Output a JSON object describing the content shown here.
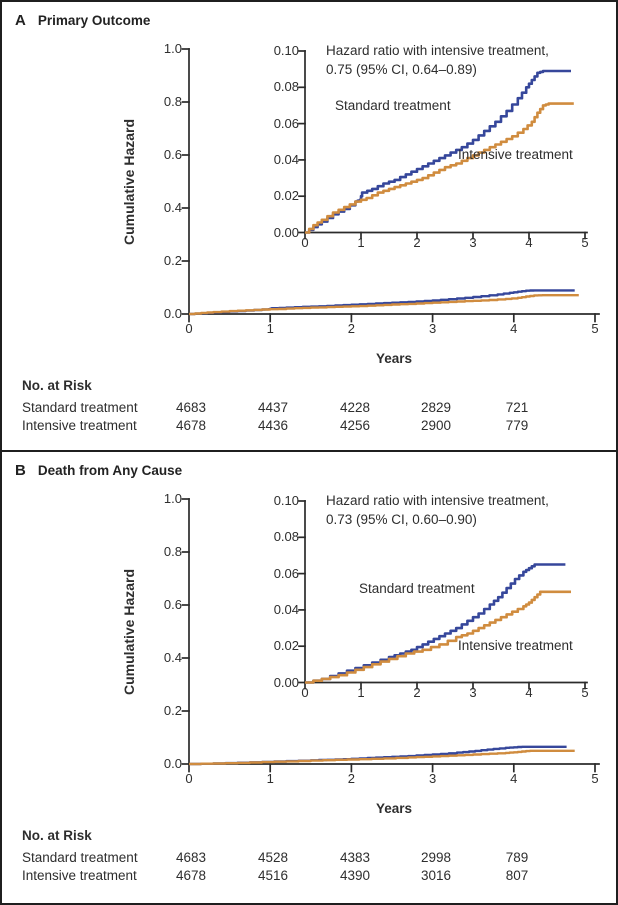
{
  "colors": {
    "standard_line": "#36479B",
    "intensive_line": "#D08C3F",
    "axis": "#2b2b2b",
    "text": "#2e2e2e",
    "border": "#1f1f1f"
  },
  "panels": [
    {
      "label": "A",
      "title": "Primary Outcome",
      "no_at_risk": {
        "heading": "No. at Risk",
        "rows": [
          {
            "label": "Standard treatment",
            "values": [
              "4683",
              "4437",
              "4228",
              "2829",
              "721"
            ]
          },
          {
            "label": "Intensive treatment",
            "values": [
              "4678",
              "4436",
              "4256",
              "2900",
              "779"
            ]
          }
        ]
      }
    },
    {
      "label": "B",
      "title": "Death from Any Cause",
      "no_at_risk": {
        "heading": "No. at Risk",
        "rows": [
          {
            "label": "Standard treatment",
            "values": [
              "4683",
              "4528",
              "4383",
              "2998",
              "789"
            ]
          },
          {
            "label": "Intensive treatment",
            "values": [
              "4678",
              "4516",
              "4390",
              "3016",
              "807"
            ]
          }
        ]
      }
    }
  ],
  "chart_data": [
    {
      "type": "line",
      "panel": "A",
      "title": "Primary Outcome",
      "xlabel": "Years",
      "ylabel": "Cumulative Hazard",
      "annotation": [
        "Hazard ratio with intensive treatment,",
        "0.75 (95% CI, 0.64–0.89)"
      ],
      "main_axis": {
        "xlim": [
          0,
          5
        ],
        "ylim": [
          0,
          1.0
        ],
        "xtick_labels": [
          "0",
          "1",
          "2",
          "3",
          "4",
          "5"
        ],
        "ytick_labels": [
          "0.0",
          "0.2",
          "0.4",
          "0.6",
          "0.8",
          "1.0"
        ],
        "grid": false
      },
      "inset_axis": {
        "xlim": [
          0,
          5
        ],
        "ylim": [
          0,
          0.1
        ],
        "xtick_labels": [
          "0",
          "1",
          "2",
          "3",
          "4",
          "5"
        ],
        "ytick_labels": [
          "0.00",
          "0.02",
          "0.04",
          "0.06",
          "0.08",
          "0.10"
        ],
        "grid": false
      },
      "series": [
        {
          "name": "Standard treatment",
          "color_key": "standard_line",
          "points": [
            [
              0,
              0
            ],
            [
              0.15,
              0.003
            ],
            [
              0.3,
              0.006
            ],
            [
              0.5,
              0.01
            ],
            [
              0.7,
              0.013
            ],
            [
              0.9,
              0.017
            ],
            [
              0.98,
              0.018
            ],
            [
              1.02,
              0.022
            ],
            [
              1.2,
              0.024
            ],
            [
              1.4,
              0.027
            ],
            [
              1.6,
              0.029
            ],
            [
              1.8,
              0.032
            ],
            [
              2.0,
              0.035
            ],
            [
              2.2,
              0.038
            ],
            [
              2.4,
              0.041
            ],
            [
              2.6,
              0.044
            ],
            [
              2.8,
              0.047
            ],
            [
              3.0,
              0.051
            ],
            [
              3.2,
              0.056
            ],
            [
              3.4,
              0.061
            ],
            [
              3.6,
              0.067
            ],
            [
              3.8,
              0.074
            ],
            [
              3.95,
              0.08
            ],
            [
              4.05,
              0.084
            ],
            [
              4.15,
              0.088
            ],
            [
              4.25,
              0.089
            ],
            [
              4.75,
              0.089
            ]
          ]
        },
        {
          "name": "Intensive treatment",
          "color_key": "intensive_line",
          "points": [
            [
              0,
              0
            ],
            [
              0.15,
              0.004
            ],
            [
              0.3,
              0.007
            ],
            [
              0.5,
              0.011
            ],
            [
              0.7,
              0.014
            ],
            [
              0.9,
              0.017
            ],
            [
              1.1,
              0.019
            ],
            [
              1.3,
              0.022
            ],
            [
              1.5,
              0.024
            ],
            [
              1.7,
              0.026
            ],
            [
              1.9,
              0.028
            ],
            [
              2.1,
              0.03
            ],
            [
              2.3,
              0.033
            ],
            [
              2.5,
              0.036
            ],
            [
              2.7,
              0.038
            ],
            [
              2.9,
              0.041
            ],
            [
              3.1,
              0.044
            ],
            [
              3.3,
              0.047
            ],
            [
              3.5,
              0.05
            ],
            [
              3.7,
              0.053
            ],
            [
              3.9,
              0.057
            ],
            [
              4.05,
              0.061
            ],
            [
              4.15,
              0.066
            ],
            [
              4.25,
              0.07
            ],
            [
              4.35,
              0.071
            ],
            [
              4.8,
              0.071
            ]
          ]
        }
      ]
    },
    {
      "type": "line",
      "panel": "B",
      "title": "Death from Any Cause",
      "xlabel": "Years",
      "ylabel": "Cumulative Hazard",
      "annotation": [
        "Hazard ratio with intensive treatment,",
        "0.73 (95% CI, 0.60–0.90)"
      ],
      "main_axis": {
        "xlim": [
          0,
          5
        ],
        "ylim": [
          0,
          1.0
        ],
        "xtick_labels": [
          "0",
          "1",
          "2",
          "3",
          "4",
          "5"
        ],
        "ytick_labels": [
          "0.0",
          "0.2",
          "0.4",
          "0.6",
          "0.8",
          "1.0"
        ],
        "grid": false
      },
      "inset_axis": {
        "xlim": [
          0,
          5
        ],
        "ylim": [
          0,
          0.1
        ],
        "xtick_labels": [
          "0",
          "1",
          "2",
          "3",
          "4",
          "5"
        ],
        "ytick_labels": [
          "0.00",
          "0.02",
          "0.04",
          "0.06",
          "0.08",
          "0.10"
        ],
        "grid": false
      },
      "series": [
        {
          "name": "Standard treatment",
          "color_key": "standard_line",
          "points": [
            [
              0,
              0
            ],
            [
              0.3,
              0.002
            ],
            [
              0.6,
              0.005
            ],
            [
              0.9,
              0.008
            ],
            [
              1.2,
              0.011
            ],
            [
              1.5,
              0.014
            ],
            [
              1.7,
              0.016
            ],
            [
              1.9,
              0.018
            ],
            [
              2.1,
              0.021
            ],
            [
              2.3,
              0.024
            ],
            [
              2.5,
              0.027
            ],
            [
              2.7,
              0.03
            ],
            [
              2.9,
              0.034
            ],
            [
              3.1,
              0.038
            ],
            [
              3.3,
              0.043
            ],
            [
              3.45,
              0.047
            ],
            [
              3.6,
              0.052
            ],
            [
              3.75,
              0.057
            ],
            [
              3.9,
              0.061
            ],
            [
              4.0,
              0.063
            ],
            [
              4.1,
              0.065
            ],
            [
              4.65,
              0.065
            ]
          ]
        },
        {
          "name": "Intensive treatment",
          "color_key": "intensive_line",
          "points": [
            [
              0,
              0
            ],
            [
              0.3,
              0.002
            ],
            [
              0.6,
              0.004
            ],
            [
              0.9,
              0.007
            ],
            [
              1.2,
              0.01
            ],
            [
              1.5,
              0.013
            ],
            [
              1.8,
              0.016
            ],
            [
              2.1,
              0.018
            ],
            [
              2.4,
              0.021
            ],
            [
              2.7,
              0.025
            ],
            [
              2.9,
              0.027
            ],
            [
              3.1,
              0.03
            ],
            [
              3.3,
              0.033
            ],
            [
              3.5,
              0.036
            ],
            [
              3.7,
              0.039
            ],
            [
              3.9,
              0.042
            ],
            [
              4.0,
              0.044
            ],
            [
              4.1,
              0.047
            ],
            [
              4.2,
              0.05
            ],
            [
              4.75,
              0.05
            ]
          ]
        }
      ]
    }
  ]
}
